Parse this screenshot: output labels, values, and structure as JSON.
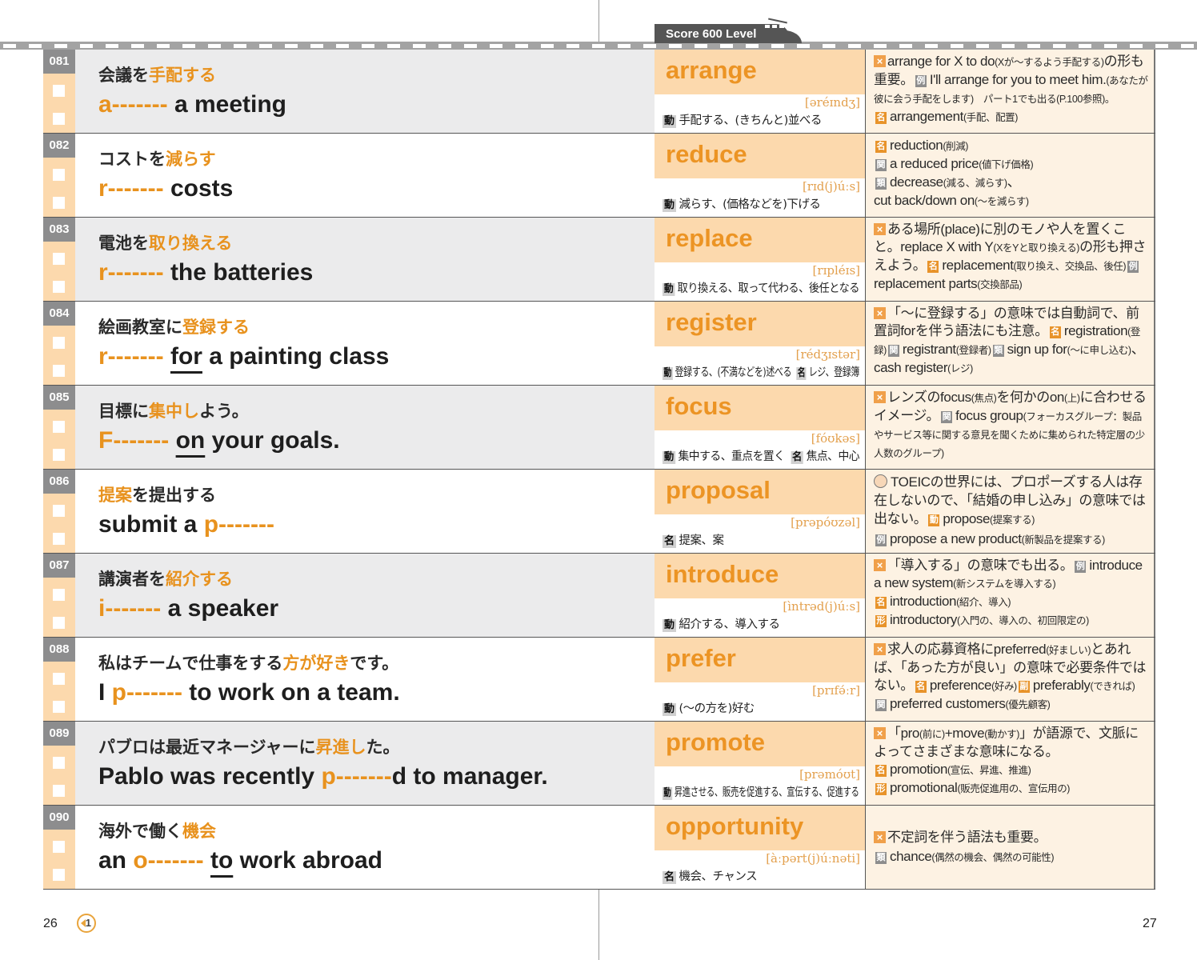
{
  "header": {
    "level_tab": "Score 600 Level"
  },
  "footer": {
    "page_left": "26",
    "page_right": "27",
    "audio_track": "1"
  },
  "colors": {
    "accent": "#e8921e",
    "word_bg": "#fcd9ad",
    "notes_bg": "#fdf2e3"
  },
  "rows": [
    {
      "num": "081",
      "ja": [
        {
          "t": "会議を"
        },
        {
          "t": "手配する",
          "hl": true
        }
      ],
      "en": [
        {
          "t": "a-------",
          "hl": true
        },
        {
          "t": " a meeting"
        }
      ],
      "word": "arrange",
      "pron": "[əréɪndʒ]",
      "defs": [
        {
          "pos": "動",
          "text": "手配する、(きちんと)並べる"
        }
      ],
      "notes": [
        [
          {
            "icon": "point"
          },
          {
            "t": "arrange for X to do"
          },
          {
            "s": "(Xが～するよう手配する)"
          },
          {
            "t": "の形も重要。"
          },
          {
            "g": "例"
          },
          {
            "t": "I'll arrange for you to meet him."
          },
          {
            "s": "(あなたが彼に会う手配をします)　パート1でも出る(P.100参照)。"
          }
        ],
        [
          {
            "b": "名"
          },
          {
            "t": "arrangement"
          },
          {
            "s": "(手配、配置)"
          }
        ]
      ]
    },
    {
      "num": "082",
      "ja": [
        {
          "t": "コストを"
        },
        {
          "t": "減らす",
          "hl": true
        }
      ],
      "en": [
        {
          "t": "r-------",
          "hl": true
        },
        {
          "t": " costs"
        }
      ],
      "word": "reduce",
      "pron": "[rɪd(j)úːs]",
      "defs": [
        {
          "pos": "動",
          "text": "減らす、(価格などを)下げる"
        }
      ],
      "notes": [
        [
          {
            "b": "名"
          },
          {
            "t": "reduction"
          },
          {
            "s": "(削減)"
          }
        ],
        [
          {
            "g": "関"
          },
          {
            "t": "a reduced price"
          },
          {
            "s": "(値下げ価格)"
          }
        ],
        [
          {
            "g": "類"
          },
          {
            "t": "decrease"
          },
          {
            "s": "(減る、減らす)"
          },
          {
            "t": "、"
          }
        ],
        [
          {
            "t": "cut back/down on"
          },
          {
            "s": "(～を減らす)"
          }
        ]
      ]
    },
    {
      "num": "083",
      "ja": [
        {
          "t": "電池を"
        },
        {
          "t": "取り換える",
          "hl": true
        }
      ],
      "en": [
        {
          "t": "r-------",
          "hl": true
        },
        {
          "t": " the batteries"
        }
      ],
      "word": "replace",
      "pron": "[rɪpléɪs]",
      "defs": [
        {
          "pos": "動",
          "text": "取り換える、取って代わる、後任となる"
        }
      ],
      "notes": [
        [
          {
            "icon": "point"
          },
          {
            "t": "ある場所(place)に別のモノや人を置くこと。replace X with Y"
          },
          {
            "s": "(XをYと取り換える)"
          },
          {
            "t": "の形も押さえよう。"
          },
          {
            "b": "名"
          },
          {
            "t": "replacement"
          },
          {
            "s": "(取り換え、交換品、後任)"
          },
          {
            "g": "例"
          },
          {
            "t": "replacement parts"
          },
          {
            "s": "(交換部品)"
          }
        ]
      ]
    },
    {
      "num": "084",
      "ja": [
        {
          "t": "絵画教室に"
        },
        {
          "t": "登録する",
          "hl": true
        }
      ],
      "en": [
        {
          "t": "r-------",
          "hl": true
        },
        {
          "t": " "
        },
        {
          "t": "for",
          "u": true
        },
        {
          "t": " a painting class"
        }
      ],
      "word": "register",
      "pron": "[rédʒɪstər]",
      "defs": [
        {
          "pos": "動",
          "text": "登録する、(不満などを)述べる"
        },
        {
          "pos": "名",
          "text": "レジ、登録簿"
        }
      ],
      "notes": [
        [
          {
            "icon": "point"
          },
          {
            "t": "「～に登録する」の意味では自動詞で、前置詞forを伴う語法にも注意。"
          },
          {
            "b": "名"
          },
          {
            "t": "registration"
          },
          {
            "s": "(登録)"
          },
          {
            "g": "関"
          },
          {
            "t": "registrant"
          },
          {
            "s": "(登録者)"
          },
          {
            "g": "類"
          },
          {
            "t": "sign up for"
          },
          {
            "s": "(～に申し込む)"
          },
          {
            "t": "、cash register"
          },
          {
            "s": "(レジ)"
          }
        ]
      ]
    },
    {
      "num": "085",
      "ja": [
        {
          "t": "目標に"
        },
        {
          "t": "集中し",
          "hl": true
        },
        {
          "t": "よう。"
        }
      ],
      "en": [
        {
          "t": "F-------",
          "hl": true
        },
        {
          "t": " "
        },
        {
          "t": "on",
          "u": true
        },
        {
          "t": " your goals."
        }
      ],
      "word": "focus",
      "pron": "[fóʊkəs]",
      "defs": [
        {
          "pos": "動",
          "text": "集中する、重点を置く"
        },
        {
          "pos": "名",
          "text": "焦点、中心"
        }
      ],
      "notes": [
        [
          {
            "icon": "point"
          },
          {
            "t": "レンズのfocus"
          },
          {
            "s": "(焦点)"
          },
          {
            "t": "を何かのon"
          },
          {
            "s": "(上)"
          },
          {
            "t": "に合わせるイメージ。"
          },
          {
            "g": "関"
          },
          {
            "t": "focus group"
          },
          {
            "s": "(フォーカスグループ：製品やサービス等に関する意見を聞くために集められた特定層の少人数のグループ)"
          }
        ]
      ]
    },
    {
      "num": "086",
      "ja": [
        {
          "t": "提案",
          "hl": true
        },
        {
          "t": "を提出する"
        }
      ],
      "en": [
        {
          "t": "submit a "
        },
        {
          "t": "p-------",
          "hl": true
        }
      ],
      "word": "proposal",
      "pron": "[prəpóʊzəl]",
      "defs": [
        {
          "pos": "名",
          "text": "提案、案"
        }
      ],
      "notes": [
        [
          {
            "icon": "face"
          },
          {
            "t": "TOEICの世界には、プロポーズする人は存在しないので、「結婚の申し込み」の意味では出ない。"
          },
          {
            "b": "動"
          },
          {
            "t": "propose"
          },
          {
            "s": "(提案する)"
          }
        ],
        [
          {
            "g": "例"
          },
          {
            "t": "propose a new product"
          },
          {
            "s": "(新製品を提案する)"
          }
        ]
      ]
    },
    {
      "num": "087",
      "ja": [
        {
          "t": "講演者を"
        },
        {
          "t": "紹介する",
          "hl": true
        }
      ],
      "en": [
        {
          "t": "i-------",
          "hl": true
        },
        {
          "t": " a speaker"
        }
      ],
      "word": "introduce",
      "pron": "[ìntrəd(j)úːs]",
      "defs": [
        {
          "pos": "動",
          "text": "紹介する、導入する"
        }
      ],
      "notes": [
        [
          {
            "icon": "point"
          },
          {
            "t": "「導入する」の意味でも出る。"
          },
          {
            "g": "例"
          },
          {
            "t": "introduce a new system"
          },
          {
            "s": "(新システムを導入する)"
          }
        ],
        [
          {
            "b": "名"
          },
          {
            "t": "introduction"
          },
          {
            "s": "(紹介、導入)"
          }
        ],
        [
          {
            "b": "形"
          },
          {
            "t": "introductory"
          },
          {
            "s": "(入門の、導入の、初回限定の)"
          }
        ]
      ]
    },
    {
      "num": "088",
      "ja": [
        {
          "t": "私はチームで仕事をする"
        },
        {
          "t": "方が好き",
          "hl": true
        },
        {
          "t": "です。"
        }
      ],
      "en": [
        {
          "t": "I "
        },
        {
          "t": "p-------",
          "hl": true
        },
        {
          "t": " to work on a team."
        }
      ],
      "word": "prefer",
      "pron": "[prɪfə́ːr]",
      "defs": [
        {
          "pos": "動",
          "text": "(～の方を)好む"
        }
      ],
      "notes": [
        [
          {
            "icon": "point"
          },
          {
            "t": "求人の応募資格にpreferred"
          },
          {
            "s": "(好ましい)"
          },
          {
            "t": "とあれば、「あった方が良い」の意味で必要条件ではない。"
          },
          {
            "b": "名"
          },
          {
            "t": "preference"
          },
          {
            "s": "(好み)"
          },
          {
            "b": "副"
          },
          {
            "t": "preferably"
          },
          {
            "s": "(できれば)"
          },
          {
            "g": "関"
          },
          {
            "t": "preferred customers"
          },
          {
            "s": "(優先顧客)"
          }
        ]
      ]
    },
    {
      "num": "089",
      "ja": [
        {
          "t": "パブロは最近マネージャーに"
        },
        {
          "t": "昇進し",
          "hl": true
        },
        {
          "t": "た。"
        }
      ],
      "en": [
        {
          "t": "Pablo was recently "
        },
        {
          "t": "p-------",
          "hl": true
        },
        {
          "t": "d to manager."
        }
      ],
      "word": "promote",
      "pron": "[prəmóʊt]",
      "defs": [
        {
          "pos": "動",
          "text": "昇進させる、販売を促進する、宣伝する、促進する"
        }
      ],
      "notes": [
        [
          {
            "icon": "point"
          },
          {
            "t": "「pro"
          },
          {
            "s": "(前に)"
          },
          {
            "t": "+move"
          },
          {
            "s": "(動かす)"
          },
          {
            "t": "」が語源で、文脈によってさまざまな意味になる。"
          }
        ],
        [
          {
            "b": "名"
          },
          {
            "t": "promotion"
          },
          {
            "s": "(宣伝、昇進、推進)"
          }
        ],
        [
          {
            "b": "形"
          },
          {
            "t": "promotional"
          },
          {
            "s": "(販売促進用の、宣伝用の)"
          }
        ]
      ]
    },
    {
      "num": "090",
      "ja": [
        {
          "t": "海外で働く"
        },
        {
          "t": "機会",
          "hl": true
        }
      ],
      "en": [
        {
          "t": "an "
        },
        {
          "t": "o-------",
          "hl": true
        },
        {
          "t": " "
        },
        {
          "t": "to",
          "u": true
        },
        {
          "t": " work abroad"
        }
      ],
      "word": "opportunity",
      "pron": "[àːpərt(j)úːnəti]",
      "defs": [
        {
          "pos": "名",
          "text": "機会、チャンス"
        }
      ],
      "notes": [
        [
          {
            "icon": "point"
          },
          {
            "t": "不定詞を伴う語法も重要。"
          }
        ],
        [
          {
            "g": "類"
          },
          {
            "t": "chance"
          },
          {
            "s": "(偶然の機会、偶然の可能性)"
          }
        ]
      ]
    }
  ]
}
